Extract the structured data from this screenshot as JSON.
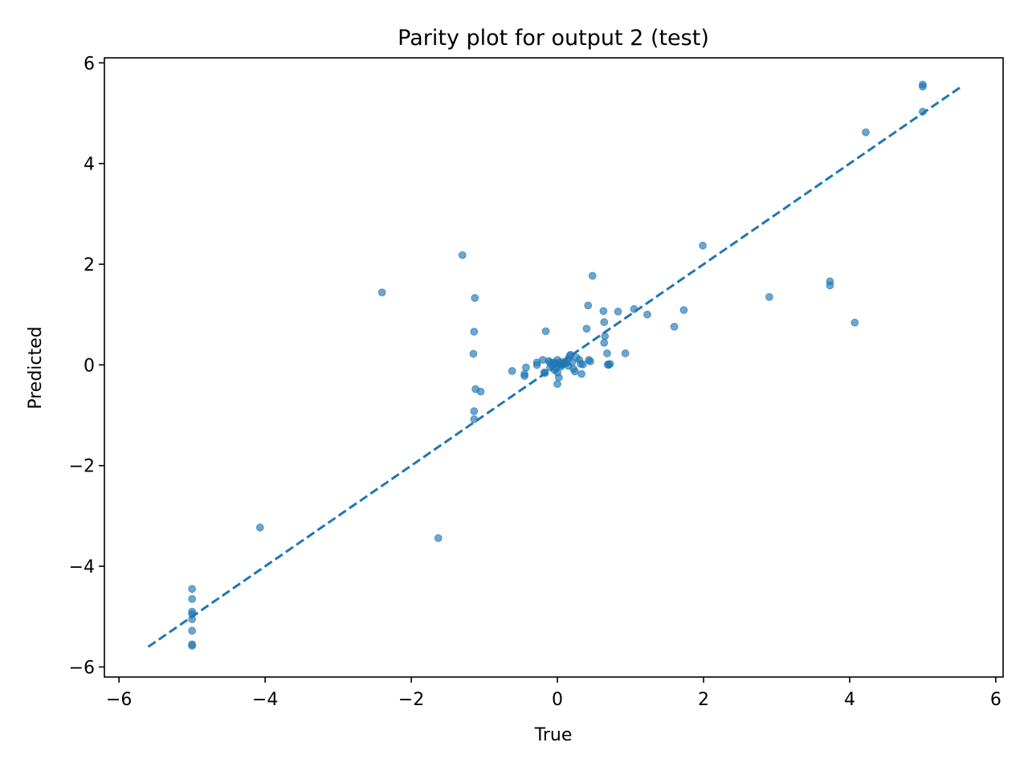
{
  "chart_data": {
    "type": "scatter",
    "title": "Parity plot for output 2 (test)",
    "xlabel": "True",
    "ylabel": "Predicted",
    "xlim": [
      -6.2,
      6.1
    ],
    "ylim": [
      -6.2,
      6.1
    ],
    "xticks": [
      -6,
      -4,
      -2,
      0,
      2,
      4,
      6
    ],
    "yticks": [
      -6,
      -4,
      -2,
      0,
      2,
      4,
      6
    ],
    "xtick_labels": [
      "−6",
      "−4",
      "−2",
      "0",
      "2",
      "4",
      "6"
    ],
    "ytick_labels": [
      "−6",
      "−4",
      "−2",
      "0",
      "2",
      "4",
      "6"
    ],
    "grid": false,
    "colors": {
      "points": "#1f77b4",
      "line": "#1f77b4"
    },
    "reference_line": {
      "style": "dashed",
      "x": [
        -5.6,
        5.55
      ],
      "y": [
        -5.6,
        5.55
      ]
    },
    "series": [
      {
        "points": [
          [
            -5.0,
            -4.45
          ],
          [
            -5.0,
            -4.65
          ],
          [
            -5.0,
            -4.9
          ],
          [
            -5.0,
            -4.95
          ],
          [
            -5.0,
            -5.05
          ],
          [
            -5.0,
            -5.28
          ],
          [
            -5.0,
            -5.55
          ],
          [
            -5.0,
            -5.58
          ],
          [
            -4.07,
            -3.23
          ],
          [
            -2.4,
            1.44
          ],
          [
            -1.63,
            -3.44
          ],
          [
            -1.3,
            2.18
          ],
          [
            -1.13,
            1.33
          ],
          [
            -1.14,
            0.66
          ],
          [
            -1.15,
            0.22
          ],
          [
            -1.12,
            -0.48
          ],
          [
            -1.05,
            -0.53
          ],
          [
            -1.14,
            -0.92
          ],
          [
            -1.14,
            -1.08
          ],
          [
            -0.62,
            -0.12
          ],
          [
            -0.45,
            -0.18
          ],
          [
            -0.45,
            -0.22
          ],
          [
            -0.43,
            -0.05
          ],
          [
            -0.28,
            0.05
          ],
          [
            -0.28,
            0.0
          ],
          [
            -0.2,
            0.1
          ],
          [
            -0.18,
            -0.15
          ],
          [
            -0.17,
            -0.16
          ],
          [
            -0.16,
            0.67
          ],
          [
            -0.12,
            0.08
          ],
          [
            -0.1,
            0.05
          ],
          [
            -0.1,
            -0.05
          ],
          [
            -0.07,
            0.0
          ],
          [
            -0.05,
            0.05
          ],
          [
            -0.04,
            -0.1
          ],
          [
            -0.03,
            0.03
          ],
          [
            -0.02,
            -0.07
          ],
          [
            0.0,
            0.1
          ],
          [
            0.0,
            -0.15
          ],
          [
            0.0,
            -0.38
          ],
          [
            0.02,
            -0.25
          ],
          [
            0.03,
            0.05
          ],
          [
            0.05,
            0.02
          ],
          [
            0.05,
            -0.03
          ],
          [
            0.06,
            0.0
          ],
          [
            0.08,
            0.06
          ],
          [
            0.1,
            0.03
          ],
          [
            0.12,
            0.04
          ],
          [
            0.15,
            0.12
          ],
          [
            0.15,
            -0.02
          ],
          [
            0.17,
            0.18
          ],
          [
            0.18,
            0.2
          ],
          [
            0.2,
            0.05
          ],
          [
            0.22,
            -0.08
          ],
          [
            0.24,
            -0.13
          ],
          [
            0.26,
            0.15
          ],
          [
            0.3,
            0.1
          ],
          [
            0.32,
            0.02
          ],
          [
            0.35,
            0.01
          ],
          [
            0.33,
            -0.18
          ],
          [
            0.4,
            0.72
          ],
          [
            0.42,
            1.18
          ],
          [
            0.43,
            0.1
          ],
          [
            0.45,
            0.07
          ],
          [
            0.48,
            1.77
          ],
          [
            0.63,
            1.07
          ],
          [
            0.64,
            0.85
          ],
          [
            0.65,
            0.57
          ],
          [
            0.64,
            0.44
          ],
          [
            0.68,
            0.23
          ],
          [
            0.69,
            0.01
          ],
          [
            0.7,
            0.0
          ],
          [
            0.72,
            0.02
          ],
          [
            0.83,
            1.06
          ],
          [
            0.93,
            0.23
          ],
          [
            1.05,
            1.11
          ],
          [
            1.23,
            1.0
          ],
          [
            1.6,
            0.76
          ],
          [
            1.73,
            1.09
          ],
          [
            1.99,
            2.37
          ],
          [
            2.9,
            1.35
          ],
          [
            3.73,
            1.66
          ],
          [
            3.73,
            1.58
          ],
          [
            4.07,
            0.84
          ],
          [
            4.22,
            4.62
          ],
          [
            5.0,
            5.57
          ],
          [
            5.0,
            5.53
          ],
          [
            5.0,
            5.03
          ]
        ]
      }
    ]
  }
}
